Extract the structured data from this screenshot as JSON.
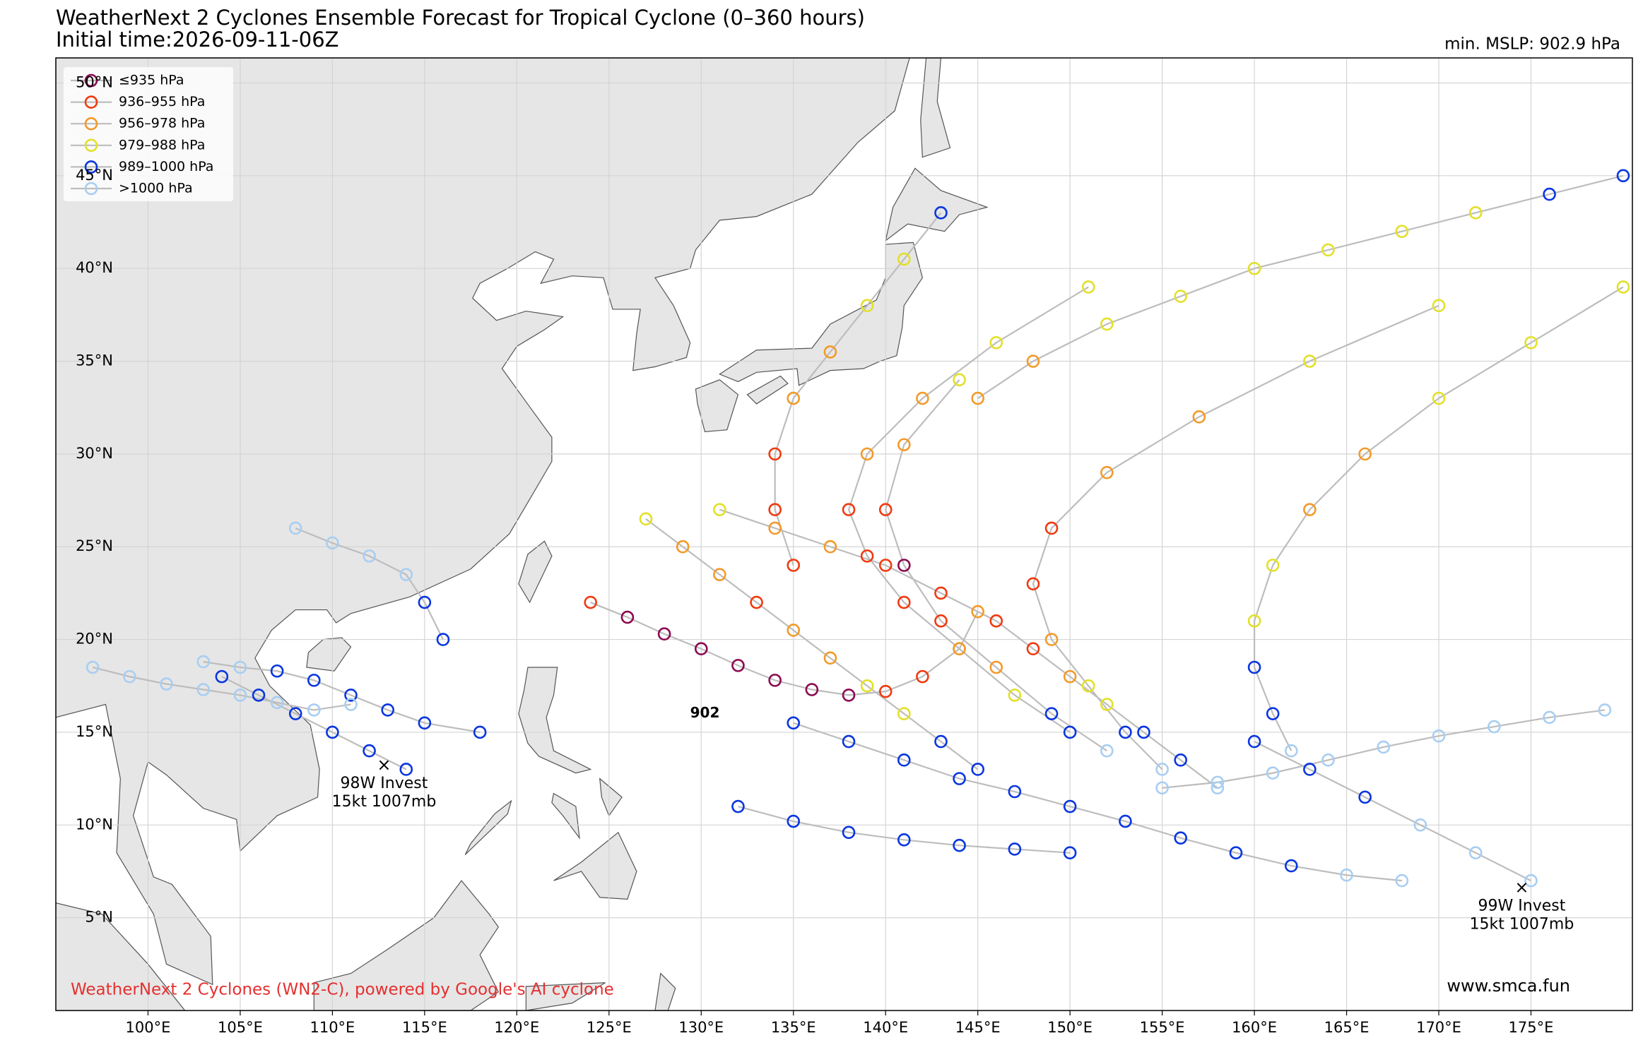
{
  "map": {
    "title": "WeatherNext 2 Cyclones Ensemble Forecast for Tropical Cyclone (0–360 hours)",
    "subtitle": "Initial time:2026-09-11-06Z",
    "min_mslp": "min. MSLP: 902.9 hPa",
    "credit": "WeatherNext 2 Cyclones (WN2-C), powered by Google's AI cyclone",
    "website": "www.smca.fun",
    "xlim": [
      95,
      180.5
    ],
    "ylim": [
      0,
      51.35
    ],
    "xticks": [
      {
        "value": 100,
        "label": "100°E"
      },
      {
        "value": 105,
        "label": "105°E"
      },
      {
        "value": 110,
        "label": "110°E"
      },
      {
        "value": 115,
        "label": "115°E"
      },
      {
        "value": 120,
        "label": "120°E"
      },
      {
        "value": 125,
        "label": "125°E"
      },
      {
        "value": 130,
        "label": "130°E"
      },
      {
        "value": 135,
        "label": "135°E"
      },
      {
        "value": 140,
        "label": "140°E"
      },
      {
        "value": 145,
        "label": "145°E"
      },
      {
        "value": 150,
        "label": "150°E"
      },
      {
        "value": 155,
        "label": "155°E"
      },
      {
        "value": 160,
        "label": "160°E"
      },
      {
        "value": 165,
        "label": "165°E"
      },
      {
        "value": 170,
        "label": "170°E"
      },
      {
        "value": 175,
        "label": "175°E"
      }
    ],
    "yticks": [
      {
        "value": 5,
        "label": "5°N"
      },
      {
        "value": 10,
        "label": "10°N"
      },
      {
        "value": 15,
        "label": "15°N"
      },
      {
        "value": 20,
        "label": "20°N"
      },
      {
        "value": 25,
        "label": "25°N"
      },
      {
        "value": 30,
        "label": "30°N"
      },
      {
        "value": 35,
        "label": "35°N"
      },
      {
        "value": 40,
        "label": "40°N"
      },
      {
        "value": 45,
        "label": "45°N"
      },
      {
        "value": 50,
        "label": "50°N"
      }
    ],
    "grid": true,
    "legend": [
      {
        "name": "≤935 hPa",
        "color": "#8b0a50"
      },
      {
        "name": "936–955 hPa",
        "color": "#f03a10"
      },
      {
        "name": "956–978 hPa",
        "color": "#f39a2a"
      },
      {
        "name": "979–988 hPa",
        "color": "#e3e02a"
      },
      {
        "name": "989–1000 hPa",
        "color": "#0a36e0"
      },
      {
        "name": ">1000 hPa",
        "color": "#a8cef2"
      }
    ],
    "tracks": [
      {
        "lon": [
          118,
          115,
          113,
          111,
          109,
          107,
          105,
          103
        ],
        "lat": [
          15,
          15.5,
          16.2,
          17,
          17.8,
          18.3,
          18.5,
          18.8
        ],
        "cat": [
          4,
          4,
          4,
          4,
          4,
          4,
          5,
          5
        ]
      },
      {
        "lon": [
          150,
          147,
          144,
          141,
          139,
          138,
          139,
          142,
          146,
          151
        ],
        "lat": [
          15,
          17,
          19.5,
          22,
          24.5,
          27,
          30,
          33,
          36,
          39
        ],
        "cat": [
          4,
          3,
          2,
          1,
          1,
          1,
          2,
          2,
          3,
          3
        ]
      },
      {
        "lon": [
          152,
          149,
          146,
          143,
          141,
          140,
          141,
          144
        ],
        "lat": [
          14,
          16,
          18.5,
          21,
          24,
          27,
          30.5,
          34
        ],
        "cat": [
          5,
          4,
          2,
          1,
          0,
          1,
          2,
          3
        ]
      },
      {
        "lon": [
          155,
          153,
          151,
          149,
          148,
          149,
          152,
          157,
          163,
          170
        ],
        "lat": [
          13,
          15,
          17.5,
          20,
          23,
          26,
          29,
          32,
          35,
          38
        ],
        "cat": [
          5,
          4,
          3,
          2,
          1,
          1,
          2,
          2,
          3,
          3
        ]
      },
      {
        "lon": [
          158,
          156,
          154,
          152,
          150,
          148,
          146,
          143,
          140,
          137,
          134,
          131
        ],
        "lat": [
          12,
          13.5,
          15,
          16.5,
          18,
          19.5,
          21,
          22.5,
          24,
          25,
          26,
          27
        ],
        "cat": [
          5,
          4,
          4,
          3,
          2,
          1,
          1,
          1,
          1,
          2,
          2,
          3
        ]
      },
      {
        "lon": [
          145,
          143,
          141,
          139,
          137,
          135,
          133,
          131,
          129,
          127
        ],
        "lat": [
          13,
          14.5,
          16,
          17.5,
          19,
          20.5,
          22,
          23.5,
          25,
          26.5
        ],
        "cat": [
          4,
          4,
          3,
          3,
          2,
          2,
          1,
          2,
          2,
          3
        ]
      },
      {
        "lon": [
          124,
          126,
          128,
          130,
          132,
          134,
          136,
          138,
          140,
          142,
          144,
          145
        ],
        "lat": [
          22,
          21.2,
          20.3,
          19.5,
          18.6,
          17.8,
          17.3,
          17,
          17.2,
          18,
          19.5,
          21.5
        ],
        "cat": [
          1,
          0,
          0,
          0,
          0,
          0,
          0,
          0,
          1,
          1,
          2,
          2
        ]
      },
      {
        "lon": [
          162,
          161,
          160,
          160,
          161,
          163,
          166,
          170,
          175,
          180
        ],
        "lat": [
          14,
          16,
          18.5,
          21,
          24,
          27,
          30,
          33,
          36,
          39
        ],
        "cat": [
          5,
          4,
          4,
          3,
          3,
          2,
          2,
          3,
          3,
          3
        ]
      },
      {
        "lon": [
          168,
          165,
          162,
          159,
          156,
          153,
          150,
          147,
          144,
          141,
          138,
          135
        ],
        "lat": [
          7,
          7.3,
          7.8,
          8.5,
          9.3,
          10.2,
          11,
          11.8,
          12.5,
          13.5,
          14.5,
          15.5
        ],
        "cat": [
          5,
          5,
          4,
          4,
          4,
          4,
          4,
          4,
          4,
          4,
          4,
          4
        ]
      },
      {
        "lon": [
          150,
          147,
          144,
          141,
          138,
          135,
          132
        ],
        "lat": [
          8.5,
          8.7,
          8.9,
          9.2,
          9.6,
          10.2,
          11
        ],
        "cat": [
          4,
          4,
          4,
          4,
          4,
          4,
          4
        ]
      },
      {
        "lon": [
          155,
          158,
          161,
          164,
          167,
          170,
          173,
          176,
          179
        ],
        "lat": [
          12,
          12.3,
          12.8,
          13.5,
          14.2,
          14.8,
          15.3,
          15.8,
          16.2
        ],
        "cat": [
          5,
          5,
          5,
          5,
          5,
          5,
          5,
          5,
          5
        ]
      },
      {
        "lon": [
          135,
          134,
          134,
          135,
          137,
          139,
          141,
          143
        ],
        "lat": [
          24,
          27,
          30,
          33,
          35.5,
          38,
          40.5,
          43
        ],
        "cat": [
          1,
          1,
          1,
          2,
          2,
          3,
          3,
          4
        ]
      },
      {
        "lon": [
          145,
          148,
          152,
          156,
          160,
          164,
          168,
          172,
          176,
          180
        ],
        "lat": [
          33,
          35,
          37,
          38.5,
          40,
          41,
          42,
          43,
          44,
          45
        ],
        "cat": [
          2,
          2,
          3,
          3,
          3,
          3,
          3,
          3,
          4,
          4
        ]
      },
      {
        "lon": [
          114,
          112,
          110,
          108,
          106,
          104
        ],
        "lat": [
          13,
          14,
          15,
          16,
          17,
          18
        ],
        "cat": [
          4,
          4,
          4,
          4,
          4,
          4
        ]
      },
      {
        "lon": [
          175,
          172,
          169,
          166,
          163,
          160
        ],
        "lat": [
          7,
          8.5,
          10,
          11.5,
          13,
          14.5
        ],
        "cat": [
          5,
          5,
          5,
          4,
          4,
          4
        ]
      },
      {
        "lon": [
          111,
          109,
          107,
          105,
          103,
          101,
          99,
          97
        ],
        "lat": [
          16.5,
          16.2,
          16.6,
          17,
          17.3,
          17.6,
          18,
          18.5
        ],
        "cat": [
          5,
          5,
          5,
          5,
          5,
          5,
          5,
          5
        ]
      },
      {
        "lon": [
          116,
          115,
          114,
          112,
          110,
          108
        ],
        "lat": [
          20,
          22,
          23.5,
          24.5,
          25.2,
          26
        ],
        "cat": [
          4,
          4,
          5,
          5,
          5,
          5
        ]
      }
    ],
    "invests": [
      {
        "name": "98W Invest",
        "detail": "15kt 1007mb",
        "lon": 112.8,
        "lat": 13.2
      },
      {
        "name": "99W Invest",
        "detail": "15kt 1007mb",
        "lon": 174.5,
        "lat": 6.6
      }
    ],
    "labels": [
      {
        "text": "902",
        "lon": 131,
        "lat": 16
      }
    ]
  }
}
